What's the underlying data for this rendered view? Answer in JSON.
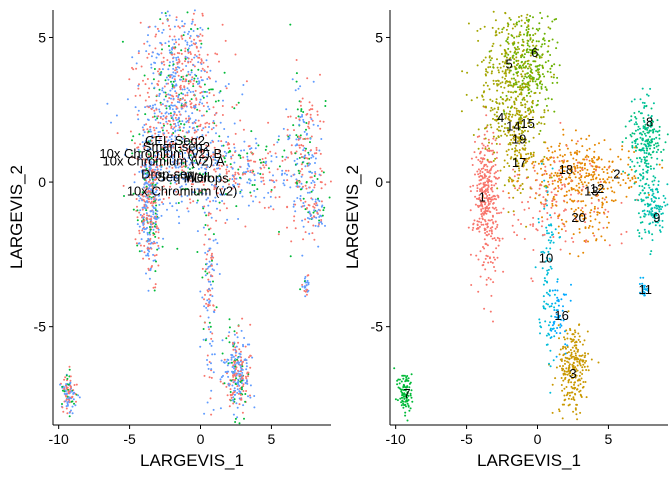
{
  "chart_data": [
    {
      "type": "scatter",
      "xlabel": "LARGEVIS_1",
      "ylabel": "LARGEVIS_2",
      "xlim": [
        -10.4,
        9.2
      ],
      "ylim": [
        -8.4,
        5.95
      ],
      "xticks": [
        -10,
        -5,
        0,
        5
      ],
      "yticks": [
        5,
        0,
        -5
      ],
      "xtick_labels": [
        "-10",
        "-5",
        "0",
        "5"
      ],
      "ytick_labels": [
        "5",
        "0",
        "-5"
      ],
      "grid": false,
      "labels": [
        {
          "text": "CEL-Seq2",
          "x": -1.8,
          "y": 1.45
        },
        {
          "text": "Smart-seq2",
          "x": -1.7,
          "y": 1.25
        },
        {
          "text": "10x Chromium (v2) B",
          "x": -2.8,
          "y": 1.0
        },
        {
          "text": "10x Chromium (v2) A",
          "x": -2.6,
          "y": 0.75
        },
        {
          "text": "Drop-seq",
          "x": -2.3,
          "y": 0.3
        },
        {
          "text": "Seq-Well",
          "x": -1.2,
          "y": 0.2
        },
        {
          "text": "inDrops",
          "x": 0.4,
          "y": 0.15
        },
        {
          "text": "10x Chromium (v2)",
          "x": -1.3,
          "y": -0.3
        }
      ],
      "series_colors": [
        "#F8766D",
        "#00BA38",
        "#619CFF"
      ],
      "clusters": [
        {
          "cx": -1.5,
          "cy": 3.5,
          "sx": 1.4,
          "sy": 1.3,
          "w": 0.22
        },
        {
          "cx": -3.6,
          "cy": -0.6,
          "sx": 0.4,
          "sy": 1.2,
          "w": 0.15
        },
        {
          "cx": 2.6,
          "cy": -6.6,
          "sx": 0.5,
          "sy": 0.7,
          "w": 0.1
        },
        {
          "cx": 2.4,
          "cy": 0.3,
          "sx": 2.0,
          "sy": 0.6,
          "w": 0.1
        },
        {
          "cx": 7.4,
          "cy": 0.8,
          "sx": 0.7,
          "sy": 1.5,
          "w": 0.09
        },
        {
          "cx": -9.3,
          "cy": -7.3,
          "sx": 0.25,
          "sy": 0.4,
          "w": 0.04
        },
        {
          "cx": 0.6,
          "cy": -3.5,
          "sx": 0.25,
          "sy": 1.8,
          "w": 0.05
        },
        {
          "cx": 0.8,
          "cy": 0.9,
          "sx": 3.0,
          "sy": 1.2,
          "w": 0.05
        },
        {
          "cx": -2.2,
          "cy": 1.0,
          "sx": 1.2,
          "sy": 1.0,
          "w": 0.1
        },
        {
          "cx": 7.4,
          "cy": -3.6,
          "sx": 0.15,
          "sy": 0.2,
          "w": 0.01
        },
        {
          "cx": 8.2,
          "cy": -1.0,
          "sx": 0.3,
          "sy": 0.4,
          "w": 0.02
        }
      ]
    },
    {
      "type": "scatter",
      "xlabel": "LARGEVIS_1",
      "ylabel": "LARGEVIS_2",
      "xlim": [
        -10.4,
        9.2
      ],
      "ylim": [
        -8.4,
        5.95
      ],
      "xticks": [
        -10,
        -5,
        0,
        5
      ],
      "yticks": [
        5,
        0,
        -5
      ],
      "xtick_labels": [
        "-10",
        "-5",
        "0",
        "5"
      ],
      "ytick_labels": [
        "5",
        "0",
        "-5"
      ],
      "grid": false,
      "labels": [
        {
          "text": "1",
          "x": -3.9,
          "y": -0.5
        },
        {
          "text": "2",
          "x": 5.6,
          "y": 0.3
        },
        {
          "text": "3",
          "x": 2.5,
          "y": -6.6
        },
        {
          "text": "4",
          "x": -2.6,
          "y": 2.25
        },
        {
          "text": "5",
          "x": -2.0,
          "y": 4.1
        },
        {
          "text": "6",
          "x": -0.2,
          "y": 4.5
        },
        {
          "text": "7",
          "x": -9.2,
          "y": -7.3
        },
        {
          "text": "8",
          "x": 7.9,
          "y": 2.1
        },
        {
          "text": "9",
          "x": 8.4,
          "y": -1.2
        },
        {
          "text": "10",
          "x": 0.6,
          "y": -2.6
        },
        {
          "text": "11",
          "x": 7.6,
          "y": -3.7
        },
        {
          "text": "12",
          "x": 4.2,
          "y": -0.2
        },
        {
          "text": "13",
          "x": 3.8,
          "y": -0.3
        },
        {
          "text": "14",
          "x": -1.7,
          "y": 1.95
        },
        {
          "text": "15",
          "x": -0.7,
          "y": 2.05
        },
        {
          "text": "16",
          "x": 1.7,
          "y": -4.6
        },
        {
          "text": "17",
          "x": -1.3,
          "y": 0.7
        },
        {
          "text": "18",
          "x": 2.0,
          "y": 0.45
        },
        {
          "text": "19",
          "x": -1.3,
          "y": 1.5
        },
        {
          "text": "20",
          "x": 2.9,
          "y": -1.2
        }
      ],
      "clusters": [
        {
          "cx": -3.6,
          "cy": -0.6,
          "sx": 0.45,
          "sy": 1.2,
          "w": 0.14,
          "color": "#F8766D"
        },
        {
          "cx": 3.0,
          "cy": 0.3,
          "sx": 1.9,
          "sy": 0.55,
          "w": 0.13,
          "color": "#E58700"
        },
        {
          "cx": 2.5,
          "cy": -6.5,
          "sx": 0.55,
          "sy": 0.75,
          "w": 0.1,
          "color": "#C99800"
        },
        {
          "cx": -1.8,
          "cy": 3.4,
          "sx": 1.2,
          "sy": 1.3,
          "w": 0.18,
          "color": "#A3A500"
        },
        {
          "cx": -0.5,
          "cy": 4.2,
          "sx": 0.9,
          "sy": 1.0,
          "w": 0.1,
          "color": "#6BB100"
        },
        {
          "cx": -9.3,
          "cy": -7.3,
          "sx": 0.25,
          "sy": 0.4,
          "w": 0.04,
          "color": "#00BA38"
        },
        {
          "cx": 7.7,
          "cy": 1.5,
          "sx": 0.6,
          "sy": 0.5,
          "w": 0.05,
          "color": "#00BF7D"
        },
        {
          "cx": 8.2,
          "cy": -0.9,
          "sx": 0.35,
          "sy": 0.45,
          "w": 0.04,
          "color": "#00C0AF"
        },
        {
          "cx": 0.7,
          "cy": -3.0,
          "sx": 0.3,
          "sy": 1.5,
          "w": 0.04,
          "color": "#00BCD8"
        },
        {
          "cx": 7.5,
          "cy": -3.6,
          "sx": 0.15,
          "sy": 0.2,
          "w": 0.01,
          "color": "#00B0F6"
        },
        {
          "cx": 1.2,
          "cy": -0.6,
          "sx": 2.2,
          "sy": 0.9,
          "w": 0.06,
          "color": "#F8766D"
        },
        {
          "cx": -1.4,
          "cy": 1.2,
          "sx": 0.6,
          "sy": 0.8,
          "w": 0.05,
          "color": "#B79F00"
        },
        {
          "cx": 1.5,
          "cy": -4.6,
          "sx": 0.4,
          "sy": 0.6,
          "w": 0.02,
          "color": "#00A9FF"
        },
        {
          "cx": 7.5,
          "cy": 0.6,
          "sx": 0.5,
          "sy": 1.3,
          "w": 0.05,
          "color": "#00C19A"
        },
        {
          "cx": 3.2,
          "cy": -1.3,
          "sx": 1.0,
          "sy": 0.6,
          "w": 0.03,
          "color": "#E58700"
        }
      ]
    }
  ]
}
